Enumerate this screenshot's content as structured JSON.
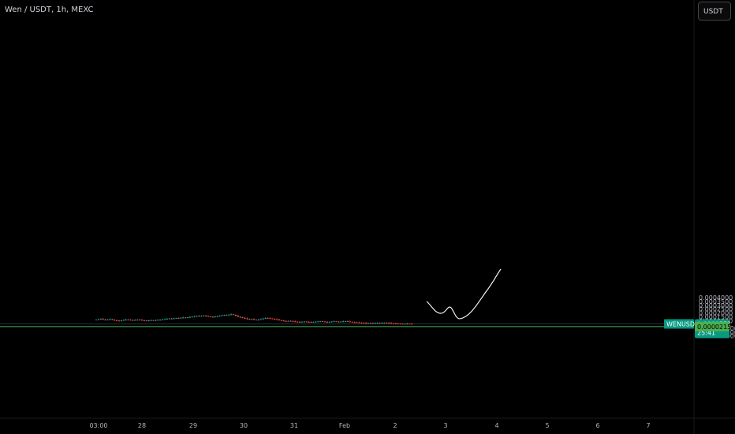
{
  "header": {
    "title": "Wen / USDT, 1h, MEXC",
    "currency_button": "USDT"
  },
  "price_scale": {
    "ticks": [
      "0.0004000",
      "0.0003500",
      "0.0003000",
      "0.0002500",
      "0.0002000",
      "0.0001500",
      "0.0001000",
      "−0.0000000",
      "−0.0000500",
      "−0.0001000"
    ],
    "tick_values": [
      0.0004,
      0.00035,
      0.0003,
      0.00025,
      0.0002,
      0.00015,
      0.0001,
      0,
      -5e-05,
      -0.0001
    ]
  },
  "time_scale": {
    "labels": [
      "03:00",
      "28",
      "29",
      "30",
      "31",
      "Feb",
      "2",
      "3",
      "4",
      "5",
      "6",
      "7"
    ]
  },
  "last_price": {
    "symbol": "WENUSDT",
    "value": "0.0000571",
    "countdown": "25:41",
    "color": "#089981"
  },
  "horizontal_line": {
    "value": "0.0000215",
    "color": "#4caf50"
  },
  "colors": {
    "up": "#26a69a",
    "down": "#ef5350",
    "background": "#000000",
    "drawing": "#ffffff"
  },
  "chart_data": {
    "type": "candlestick",
    "x_unit": "hourly candles",
    "y_range": [
      -0.00011,
      0.0004
    ],
    "closes": [
      0.000112,
      0.000118,
      0.000122,
      0.000115,
      0.000108,
      0.000113,
      0.000119,
      0.000111,
      0.000104,
      9.8e-05,
      9.4e-05,
      0.000102,
      0.000108,
      0.000114,
      0.00011,
      0.000106,
      0.000103,
      0.000107,
      0.000112,
      0.000109,
      0.000105,
      0.0001,
      9.7e-05,
      0.000101,
      0.000104,
      0.000102,
      0.000106,
      0.000108,
      0.000112,
      0.000115,
      0.000119,
      0.000123,
      0.000127,
      0.000124,
      0.000129,
      0.000133,
      0.000131,
      0.000136,
      0.00014,
      0.000137,
      0.000142,
      0.000147,
      0.000151,
      0.000156,
      0.00016,
      0.000157,
      0.000162,
      0.000165,
      0.00016,
      0.000154,
      0.000149,
      0.000146,
      0.000152,
      0.000158,
      0.000163,
      0.000168,
      0.000173,
      0.00017,
      0.000177,
      0.000182,
      0.000174,
      0.000163,
      0.000151,
      0.000143,
      0.000136,
      0.000127,
      0.000121,
      0.000114,
      0.000119,
      0.000112,
      0.000108,
      0.000113,
      0.000119,
      0.000126,
      0.000133,
      0.000131,
      0.000127,
      0.000123,
      0.000118,
      0.000112,
      0.000106,
      0.0001,
      9.4e-05,
      9.1e-05,
      9.6e-05,
      9.2e-05,
      8.8e-05,
      8.5e-05,
      8.3e-05,
      8.1e-05,
      8.4e-05,
      8.7e-05,
      8.3e-05,
      8e-05,
      7.8e-05,
      8.2e-05,
      8.5e-05,
      8.8e-05,
      9.1e-05,
      8.6e-05,
      8.2e-05,
      7.9e-05,
      8.3e-05,
      8.7e-05,
      9e-05,
      8.6e-05,
      8.2e-05,
      8.6e-05,
      8.9e-05,
      9.2e-05,
      8.8e-05,
      8.4e-05,
      8e-05,
      7.7e-05,
      7.5e-05,
      7.4e-05,
      7.2e-05,
      7e-05,
      6.8e-05,
      6.9e-05,
      6.7e-05,
      6.6e-05,
      6.8e-05,
      7e-05,
      6.9e-05,
      7.1e-05,
      7.3e-05,
      7.1e-05,
      6.8e-05,
      6.6e-05,
      6.4e-05,
      6.2e-05,
      6e-05,
      5.8e-05,
      5.6e-05,
      5.7e-05,
      5.9e-05,
      5.8e-05,
      5.7e-05
    ]
  }
}
